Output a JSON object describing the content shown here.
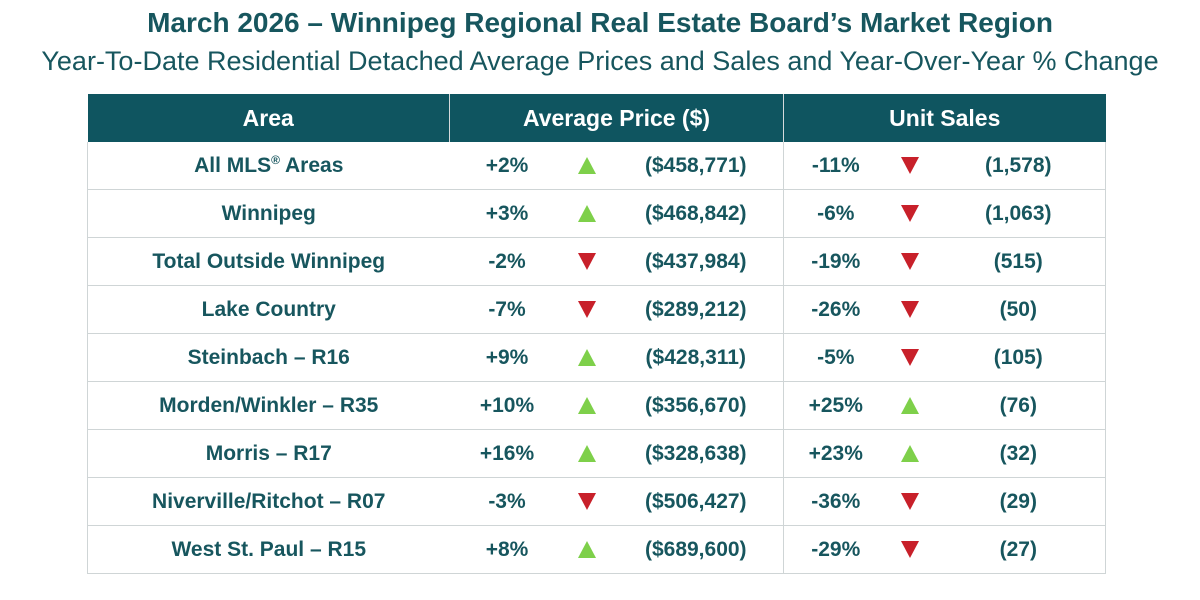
{
  "header": {
    "title": "March 2026 – Winnipeg Regional Real Estate Board’s Market Region",
    "subtitle": "Year-To-Date Residential Detached Average Prices and Sales and Year-Over-Year % Change"
  },
  "table": {
    "columns": {
      "area": "Area",
      "avg_price": "Average Price ($)",
      "unit_sales": "Unit Sales"
    },
    "rows": [
      {
        "area": "All MLS",
        "area_sup": "®",
        "area_suffix": " Areas",
        "price_change": "+2%",
        "price_dir": "up",
        "price": "($458,771)",
        "sales_change": "-11%",
        "sales_dir": "down",
        "sales": "(1,578)"
      },
      {
        "area": "Winnipeg",
        "price_change": "+3%",
        "price_dir": "up",
        "price": "($468,842)",
        "sales_change": "-6%",
        "sales_dir": "down",
        "sales": "(1,063)"
      },
      {
        "area": "Total Outside Winnipeg",
        "price_change": "-2%",
        "price_dir": "down",
        "price": "($437,984)",
        "sales_change": "-19%",
        "sales_dir": "down",
        "sales": "(515)"
      },
      {
        "area": "Lake Country",
        "price_change": "-7%",
        "price_dir": "down",
        "price": "($289,212)",
        "sales_change": "-26%",
        "sales_dir": "down",
        "sales": "(50)"
      },
      {
        "area": "Steinbach – R16",
        "price_change": "+9%",
        "price_dir": "up",
        "price": "($428,311)",
        "sales_change": "-5%",
        "sales_dir": "down",
        "sales": "(105)"
      },
      {
        "area": "Morden/Winkler – R35",
        "price_change": "+10%",
        "price_dir": "up",
        "price": "($356,670)",
        "sales_change": "+25%",
        "sales_dir": "up",
        "sales": "(76)"
      },
      {
        "area": "Morris – R17",
        "price_change": "+16%",
        "price_dir": "up",
        "price": "($328,638)",
        "sales_change": "+23%",
        "sales_dir": "up",
        "sales": "(32)"
      },
      {
        "area": "Niverville/Ritchot – R07",
        "price_change": "-3%",
        "price_dir": "down",
        "price": "($506,427)",
        "sales_change": "-36%",
        "sales_dir": "down",
        "sales": "(29)"
      },
      {
        "area": "West St. Paul – R15",
        "price_change": "+8%",
        "price_dir": "up",
        "price": "($689,600)",
        "sales_change": "-29%",
        "sales_dir": "down",
        "sales": "(27)"
      }
    ]
  },
  "icons": {
    "up": "triangle-up-icon",
    "down": "triangle-down-icon"
  },
  "colors": {
    "header_bg": "#0f5560",
    "text": "#17565e",
    "up": "#7ed04a",
    "down": "#c8202a"
  }
}
